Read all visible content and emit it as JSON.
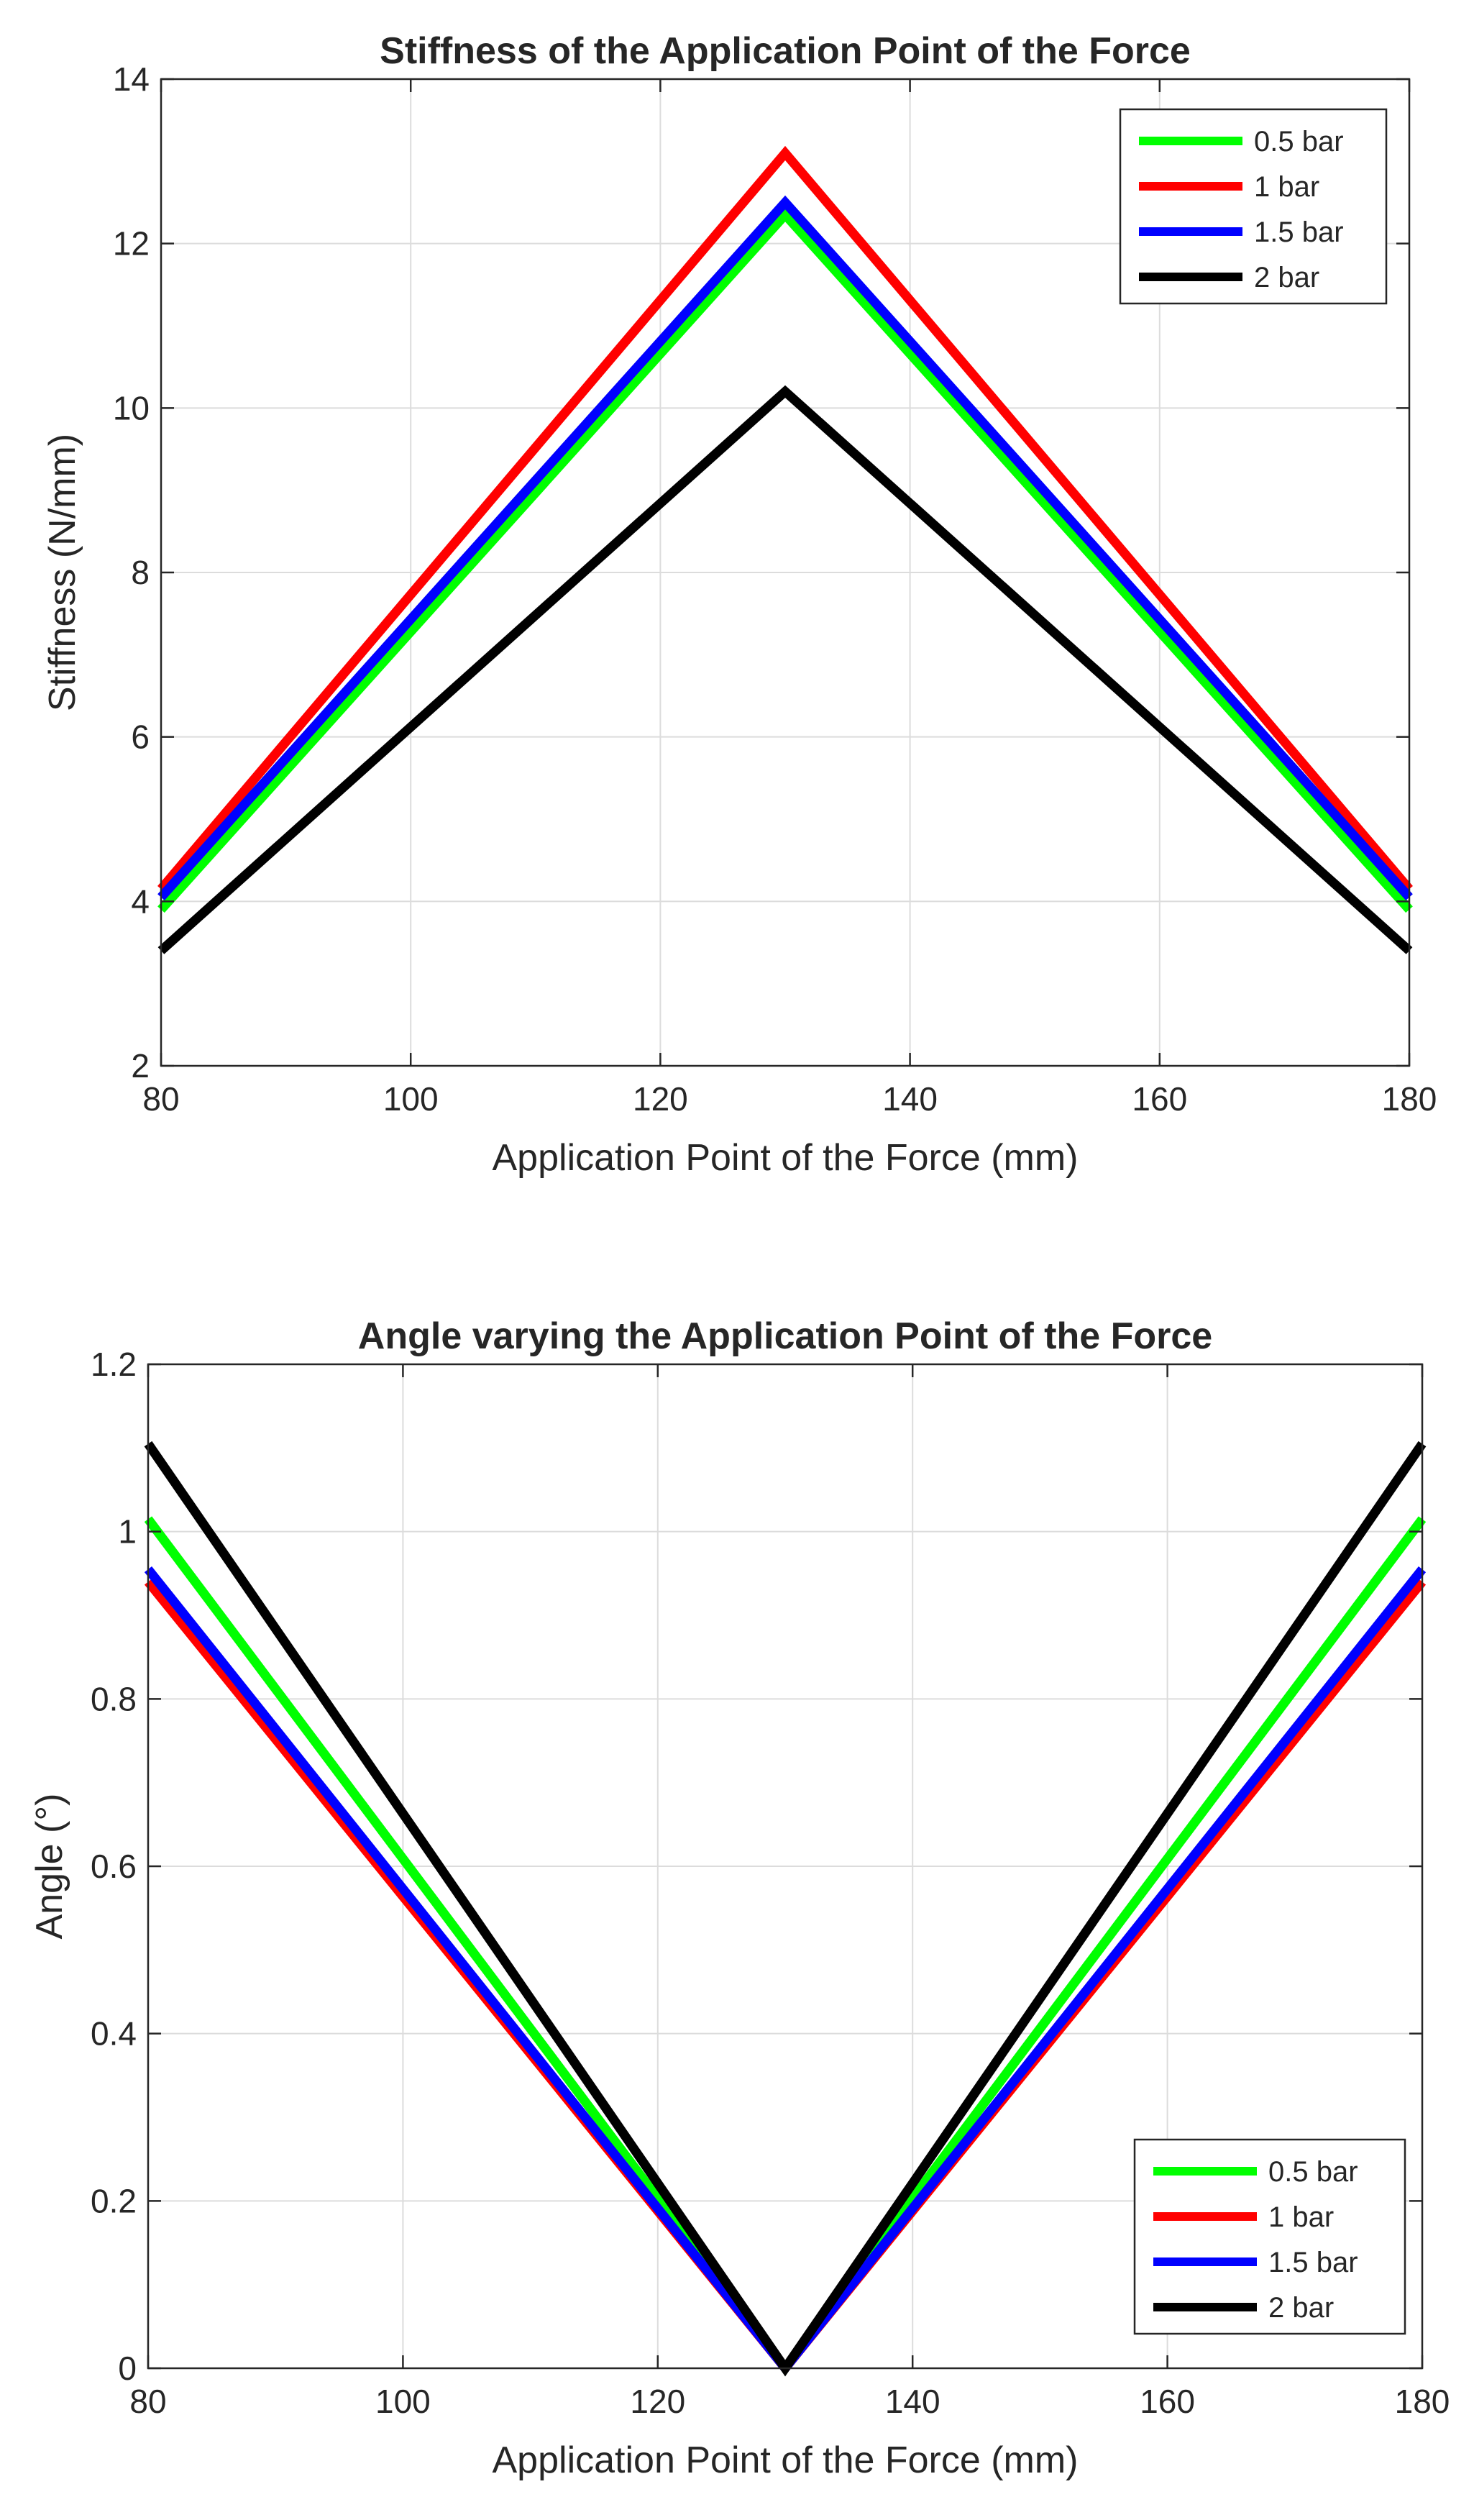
{
  "chart_data": [
    {
      "type": "line",
      "title": "Stiffness of the Application Point of the Force",
      "xlabel": "Application Point of the Force (mm)",
      "ylabel": "Stiffness (N/mm)",
      "xlim": [
        80,
        180
      ],
      "ylim": [
        2,
        14
      ],
      "xticks": [
        "80",
        "100",
        "120",
        "140",
        "160",
        "180"
      ],
      "yticks": [
        "2",
        "4",
        "6",
        "8",
        "10",
        "12",
        "14"
      ],
      "grid": true,
      "legend_position": "top-right",
      "x": [
        80,
        130,
        180
      ],
      "series": [
        {
          "name": "0.5 bar",
          "color": "#00ff00",
          "values": [
            3.9,
            12.35,
            3.9
          ]
        },
        {
          "name": "1 bar",
          "color": "#ff0000",
          "values": [
            4.15,
            13.1,
            4.15
          ]
        },
        {
          "name": "1.5 bar",
          "color": "#0000ff",
          "values": [
            4.05,
            12.5,
            4.05
          ]
        },
        {
          "name": "2 bar",
          "color": "#000000",
          "values": [
            3.4,
            10.2,
            3.4
          ]
        }
      ]
    },
    {
      "type": "line",
      "title": "Angle varying the Application Point of the Force",
      "xlabel": "Application Point of the Force (mm)",
      "ylabel": "Angle (°)",
      "xlim": [
        80,
        180
      ],
      "ylim": [
        0,
        1.2
      ],
      "xticks": [
        "80",
        "100",
        "120",
        "140",
        "160",
        "180"
      ],
      "yticks": [
        "0",
        "0.2",
        "0.4",
        "0.6",
        "0.8",
        "1",
        "1.2"
      ],
      "grid": true,
      "legend_position": "bottom-right",
      "x": [
        80,
        130,
        180
      ],
      "series": [
        {
          "name": "0.5 bar",
          "color": "#00ff00",
          "values": [
            1.015,
            0,
            1.015
          ]
        },
        {
          "name": "1 bar",
          "color": "#ff0000",
          "values": [
            0.94,
            0,
            0.94
          ]
        },
        {
          "name": "1.5 bar",
          "color": "#0000ff",
          "values": [
            0.955,
            0,
            0.955
          ]
        },
        {
          "name": "2 bar",
          "color": "#000000",
          "values": [
            1.105,
            0,
            1.105
          ]
        }
      ]
    }
  ]
}
